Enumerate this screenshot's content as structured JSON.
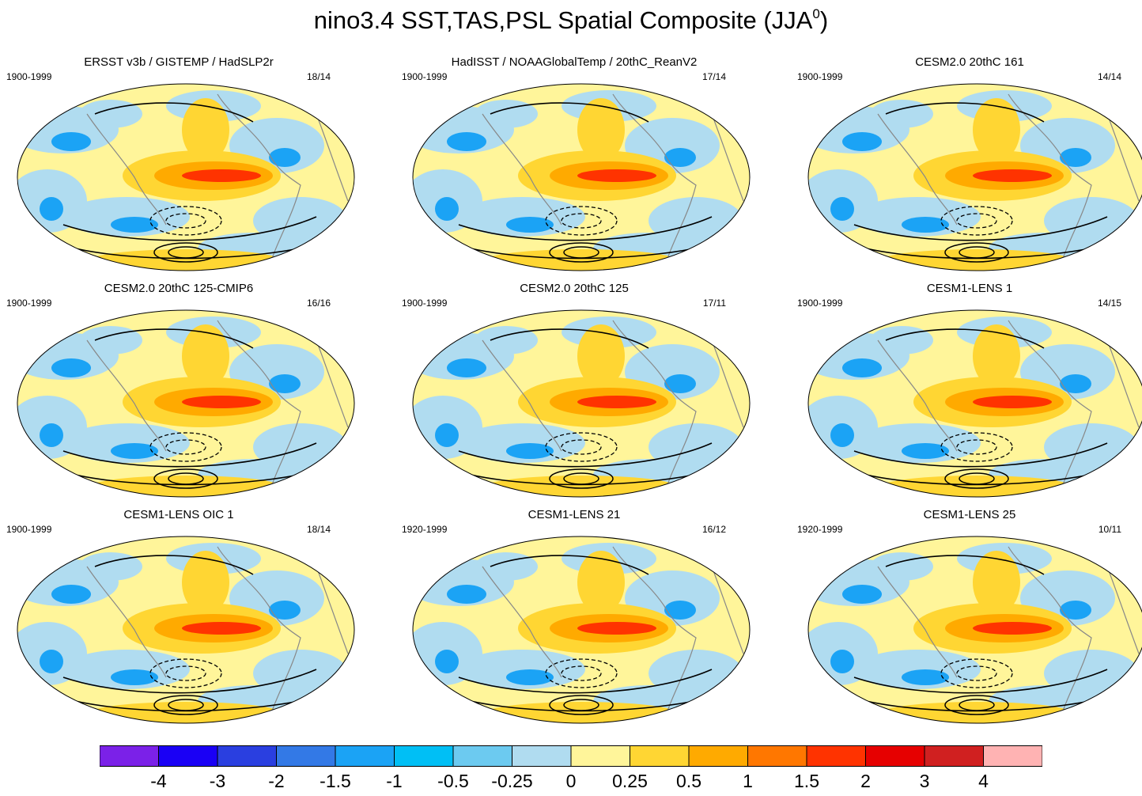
{
  "title": {
    "main": "nino3.4 SST,TAS,PSL Spatial Composite (JJA",
    "superscript": "0",
    "close": ")"
  },
  "panels": [
    {
      "title": "ERSST v3b / GISTEMP / HadSLP2r",
      "years": "1900-1999",
      "count": "18/14"
    },
    {
      "title": "HadISST / NOAAGlobalTemp / 20thC_ReanV2",
      "years": "1900-1999",
      "count": "17/14"
    },
    {
      "title": "CESM2.0 20thC 161",
      "years": "1900-1999",
      "count": "14/14"
    },
    {
      "title": "CESM2.0 20thC 125-CMIP6",
      "years": "1900-1999",
      "count": "16/16"
    },
    {
      "title": "CESM2.0 20thC 125",
      "years": "1900-1999",
      "count": "17/11"
    },
    {
      "title": "CESM1-LENS 1",
      "years": "1900-1999",
      "count": "14/15"
    },
    {
      "title": "CESM1-LENS OIC 1",
      "years": "1900-1999",
      "count": "18/14"
    },
    {
      "title": "CESM1-LENS 21",
      "years": "1920-1999",
      "count": "16/12"
    },
    {
      "title": "CESM1-LENS 25",
      "years": "1920-1999",
      "count": "10/11"
    }
  ],
  "colorbar": {
    "colors": [
      "#7b21e8",
      "#1a00f5",
      "#2a3fe0",
      "#3379e6",
      "#1ba3f5",
      "#00bff5",
      "#6ccaf0",
      "#b0dcf0",
      "#fff59a",
      "#ffd633",
      "#ffaa00",
      "#ff7700",
      "#ff3300",
      "#e60000",
      "#d02020",
      "#ffb3b3"
    ],
    "labels": [
      "-4",
      "-3",
      "-2",
      "-1.5",
      "-1",
      "-0.5",
      "-0.25",
      "0",
      "0.25",
      "0.5",
      "1",
      "1.5",
      "2",
      "3",
      "4"
    ]
  },
  "palette": {
    "ocean_neutral": "#fff59a",
    "cool": "#b0dcf0",
    "cool_strong": "#1ba3f5",
    "warm": "#ffd633",
    "warm_strong": "#ffaa00",
    "hot": "#ff3300",
    "coast": "#888888",
    "contour": "#000000"
  }
}
